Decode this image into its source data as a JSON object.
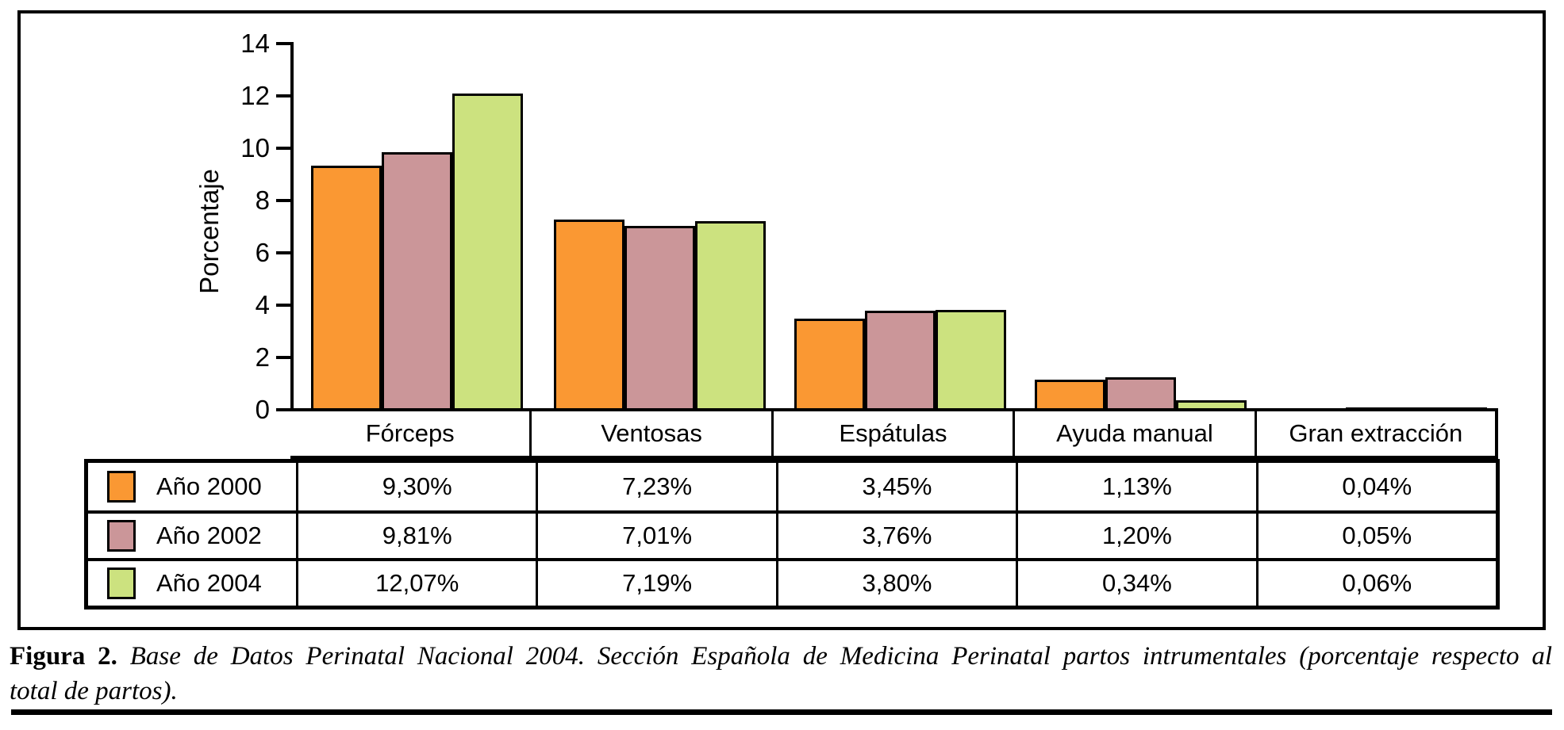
{
  "figure": {
    "caption_label": "Figura 2.",
    "caption_line1": "Base de Datos Perinatal Nacional 2004. Sección Española de Medicina Perinatal partos intrumentales (porcentaje respecto al",
    "caption_line2": "total de partos).",
    "frame_color": "#000000",
    "background_color": "#ffffff"
  },
  "chart_data": {
    "type": "bar",
    "title": "",
    "xlabel": "",
    "ylabel": "Porcentaje",
    "categories": [
      "Fórceps",
      "Ventosas",
      "Espátulas",
      "Ayuda manual",
      "Gran extracción"
    ],
    "series": [
      {
        "name": "Año 2000",
        "color": "#FA9833",
        "values": [
          9.3,
          7.23,
          3.45,
          1.13,
          0.04
        ],
        "display": [
          "9,30%",
          "7,23%",
          "3,45%",
          "1,13%",
          "0,04%"
        ]
      },
      {
        "name": "Año 2002",
        "color": "#CB9699",
        "values": [
          9.81,
          7.01,
          3.76,
          1.2,
          0.05
        ],
        "display": [
          "9,81%",
          "7,01%",
          "3,76%",
          "1,20%",
          "0,05%"
        ]
      },
      {
        "name": "Año 2004",
        "color": "#CCE27F",
        "values": [
          12.07,
          7.19,
          3.8,
          0.34,
          0.06
        ],
        "display": [
          "12,07%",
          "7,19%",
          "3,80%",
          "0,34%",
          "0,06%"
        ]
      }
    ],
    "ylim": [
      0,
      14
    ],
    "yticks": [
      0,
      2,
      4,
      6,
      8,
      10,
      12,
      14
    ],
    "grid": false,
    "legend_position": "table-rows-left",
    "bar_outline_color": "#000000"
  }
}
